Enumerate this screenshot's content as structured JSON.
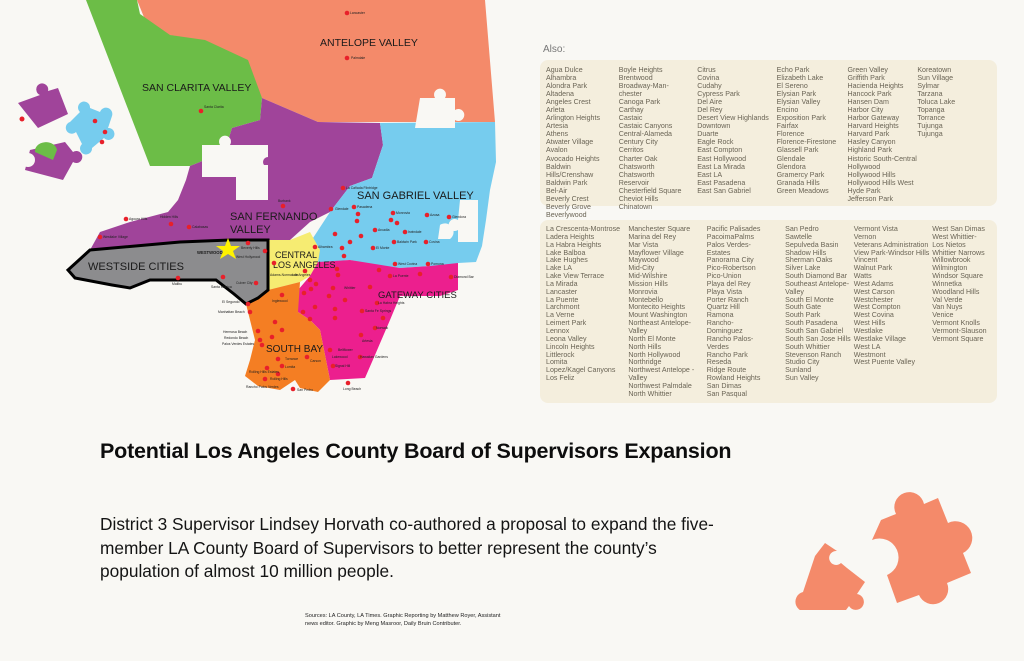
{
  "map": {
    "regions": [
      {
        "name": "ANTELOPE VALLEY",
        "color": "#f48a6a"
      },
      {
        "name": "SAN CLARITA VALLEY",
        "color": "#6cbd47"
      },
      {
        "name": "SAN FERNANDO",
        "name2": "VALLEY",
        "color": "#a0449a"
      },
      {
        "name": "SAN GABRIEL VALLEY",
        "color": "#76ccee"
      },
      {
        "name": "WESTSIDE CITIES",
        "color": "#8c8c8e"
      },
      {
        "name": "CENTRAL",
        "name2": "LOS ANGELES",
        "color": "#f6ec72"
      },
      {
        "name": "GATEWAY CITIES",
        "color": "#ec1f8e"
      },
      {
        "name": "SOUTH BAY",
        "color": "#f47e23"
      }
    ],
    "highlight": {
      "label": "WESTWOOD",
      "color": "#fff200"
    },
    "point_color": "#e8202a",
    "cities": {
      "lancaster": "Lancaster",
      "palmdale": "Palmdale",
      "santa_clarita": "Santa Clarita",
      "san_fernando": "San Fernando",
      "san_dimas": "San Dimas",
      "la_verne": "La Verne",
      "claremont": "Claremont",
      "burbank": "Burbank",
      "glendale": "Glendale",
      "la_canada": "La Cañada Flintridge",
      "pasadena": "Pasadena",
      "sierra_madre": "Sierra Madre",
      "monrovia": "Monrovia",
      "azusa": "Azusa",
      "glendora": "Glendora",
      "san_marino": "San Marino",
      "bradbury": "Bradbury",
      "duarte": "Duarte",
      "arcadia": "Arcadia",
      "irwindale": "Irwindale",
      "south_pasadena": "South Pasadena",
      "san_gabriel": "San Gabriel",
      "temple_city": "Temple City",
      "baldwin_park": "Baldwin Park",
      "covina": "Covina",
      "alhambra": "Alhambra",
      "rosemead": "Rosemead",
      "el_monte": "El Monte",
      "south_el_monte": "South El Monte",
      "monterey_park": "Monterey Park",
      "west_covina": "West Covina",
      "pomona": "Pomona",
      "industry": "Industry",
      "montebello": "Montebello",
      "la_puente": "La Puente",
      "walnut": "Walnut",
      "diamond_bar": "Diamond Bar",
      "hidden_hills": "Hidden Hills",
      "agoura_hills": "Agoura Hills",
      "calabasas": "Calabasas",
      "westlake_village": "Westlake Village",
      "beverly_hills": "Beverly Hills",
      "west_hollywood": "West Hollywood",
      "culver_city": "Culver City",
      "santa_monica": "Santa Monica",
      "malibu": "Malibu",
      "adams_normandie": "Adams-Normandie",
      "los_angeles": "Los Angeles",
      "vernon": "Vernon",
      "commerce": "Commerce",
      "maywood": "Maywood",
      "pico_rivera": "Pico Rivera",
      "whittier": "Whittier",
      "huntington_park": "Huntington Park",
      "south_gate": "South Gate",
      "cudahy": "Cudahy",
      "bell_gardens": "Bell Gardens",
      "la_habra_heights": "La Habra Heights",
      "bell": "Bell",
      "downey": "Downey",
      "santa_fe_springs": "Santa Fe Springs",
      "lynwood": "Lynwood",
      "paramount": "Paramount",
      "compton": "Compton",
      "norwalk": "Norwalk",
      "bellflower": "Bellflower",
      "artesia": "Artesia",
      "lakewood": "Lakewood",
      "hawaiian_gardens": "Hawaiian Gardens",
      "signal_hill": "Signal Hill",
      "long_beach": "Long Beach",
      "inglewood": "Inglewood",
      "el_segundo": "El Segundo",
      "manhattan_beach": "Manhattan Beach",
      "hawthorne": "Hawthorne",
      "lawndale": "Lawndale",
      "hermosa_beach": "Hermosa Beach",
      "redondo_beach": "Redondo Beach",
      "gardena": "Gardena",
      "palos_verdes_estates": "Palos Verdes Estates",
      "torrance": "Torrance",
      "carson": "Carson",
      "lomita": "Lomita",
      "rolling_hills_estates": "Rolling Hills Estates",
      "rolling_hills": "Rolling Hills",
      "rancho_palos_verdes": "Rancho Palos Verdes",
      "san_pedro": "San Pedro"
    }
  },
  "also": {
    "label": "Also:",
    "group1": [
      [
        "Agua Dulce",
        "Alhambra",
        "Alondra Park",
        "Altadena",
        "Angeles Crest",
        "Arleta",
        "Arlington Heights",
        "Artesia",
        "Athens",
        "Atwater Village",
        "Avalon",
        "Avocado Heights",
        "Baldwin Hills/Crenshaw",
        "Baldwin Park",
        "Bel-Air",
        "Beverly Crest",
        "Beverly Grove",
        "Beverlywood"
      ],
      [
        "Boyle Heights",
        "Brentwood",
        "Broadway-Man-",
        "chester",
        "Canoga Park",
        "Carthay",
        "Castaic",
        "Castaic Canyons",
        "Central-Alameda",
        "Century City",
        "Cerritos",
        "Charter Oak",
        "Chatsworth",
        "Chatsworth",
        "Reservoir",
        "Chesterfield Square",
        "Cheviot Hills",
        "Chinatown"
      ],
      [
        "Citrus",
        "Covina",
        "Cudahy",
        "Cypress Park",
        "Del Aire",
        "Del Rey",
        "Desert View Highlands",
        "Downtown",
        "Duarte",
        "Eagle Rock",
        "East Compton",
        "East Hollywood",
        "East La Mirada",
        "East LA",
        "East Pasadena",
        "East San Gabriel"
      ],
      [
        "Echo Park",
        "Elizabeth Lake",
        "El Sereno",
        "Elysian Park",
        "Elysian Valley",
        "Encino",
        "Exposition Park",
        "Fairfax",
        "Florence",
        "Florence-Firestone",
        "Glassell Park",
        "Glendale",
        "Glendora",
        "Gramercy Park",
        "Granada Hills",
        "Green Meadows"
      ],
      [
        "Green Valley",
        "Griffith Park",
        "Hacienda Heights",
        "Hancock Park",
        "Hansen Dam",
        "Harbor City",
        "Harbor Gateway",
        "Harvard Heights",
        "Harvard Park",
        "Hasley Canyon",
        "Highland Park",
        "Historic South-Central",
        "Hollywood",
        "Hollywood Hills",
        "Hollywood Hills West",
        "Hyde Park",
        "Jefferson Park"
      ],
      [
        "Koreatown",
        "Sun Village",
        "Sylmar",
        "Tarzana",
        "Toluca Lake",
        "Topanga",
        "Torrance",
        "Tujunga",
        "Tujunga"
      ]
    ],
    "group2": [
      [
        "La Crescenta-Montrose",
        "Ladera Heights",
        "La Habra Heights",
        "Lake Balboa",
        "Lake Hughes",
        "Lake LA",
        "Lake View Terrace",
        "La Mirada",
        "Lancaster",
        "La Puente",
        "Larchmont",
        "La Verne",
        "Leimert Park",
        "Lennox",
        "Leona Valley",
        "Lincoln Heights",
        "Littlerock",
        "Lomita",
        "Lopez/Kagel Canyons",
        "Los Feliz"
      ],
      [
        "Manchester Square",
        "Marina del Rey",
        "Mar Vista",
        "Mayflower Village",
        "Maywood",
        "Mid-City",
        "Mid-Wilshire",
        "Mission Hills",
        "Monrovia",
        "Montebello",
        "Montecito Heights",
        "Mount Washington",
        "Northeast Antelope-",
        "Valley",
        "North El Monte",
        "North Hills",
        "North Hollywood",
        "Northridge",
        "Northwest Antelope -",
        "Valley",
        "Northwest Palmdale",
        "North Whittier"
      ],
      [
        "Pacific Palisades",
        "PacoimaPalms",
        "Palos Verdes-",
        "Estates",
        "Panorama City",
        "Pico-Robertson",
        "Pico-Union",
        "Playa del Rey",
        "Playa Vista",
        "Porter Ranch",
        "Quartz Hill",
        "Ramona",
        "Rancho-",
        "Dominguez",
        "Rancho Palos-",
        "Verdes",
        "Rancho Park",
        "Reseda",
        "Ridge Route",
        "Rowland Heights",
        "San Dimas",
        "San Pasqual"
      ],
      [
        "San Pedro",
        "Sawtelle",
        "Sepulveda Basin",
        "Shadow Hills",
        "Sherman Oaks",
        "Silver Lake",
        "South Diamond Bar",
        "Southeast Antelope-",
        "Valley",
        "South El Monte",
        "South Gate",
        "South Park",
        "South Pasadena",
        "South San Gabriel",
        "South San Jose Hills",
        "South Whittier",
        "Stevenson Ranch",
        "Studio City",
        "Sunland",
        "Sun Valley"
      ],
      [
        "Vermont Vista",
        "Vernon",
        "Veterans Administration",
        "View Park-Windsor Hills",
        "Vincent",
        "Walnut Park",
        "Watts",
        "West Adams",
        "West Carson",
        "Westchester",
        "West Compton",
        "West Covina",
        "West Hills",
        "Westlake",
        "Westlake Village",
        "West LA",
        "Westmont",
        "West Puente Valley"
      ],
      [
        "West San Dimas",
        "West Whittier-",
        "Los Nietos",
        "Whittier Narrows",
        "Willowbrook",
        "Wilmington",
        "Windsor Square",
        "Winnetka",
        "Woodland Hills",
        "Val Verde",
        "Van Nuys",
        "Venice",
        "Vermont Knolls",
        "Vermont-Slauson",
        "Vermont Square"
      ]
    ]
  },
  "headline": {
    "title": "Potential Los Angeles County Board of Supervisors Expansion",
    "description": "District 3 Supervisor Lindsey Horvath co-authored a proposal to expand the five-member LA County Board of Supervisors to better represent the county’s population of almost 10 million people.",
    "sources": "Sources: LA County, LA Times. Graphic Reporting by Matthew Royer, Assistant news editor. Graphic by Meng Masroor, Daily Bruin Contributer."
  },
  "decoration": {
    "puzzle_color": "#f48a6a"
  }
}
